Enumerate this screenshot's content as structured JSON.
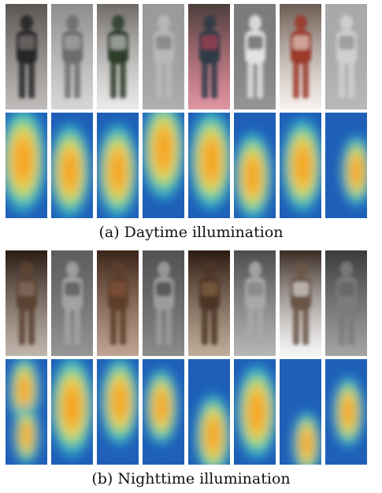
{
  "figure": {
    "caption_day": "(a) Daytime illumination",
    "caption_night": "(b) Nighttime illumination"
  },
  "day_photos": [
    {
      "bg": "#5b5552",
      "fg": "#262626",
      "accent": "#8a8582",
      "mode": "color"
    },
    {
      "bg": "#8c8c8c",
      "fg": "#6d6d6d",
      "accent": "#b5b5b5",
      "mode": "gray"
    },
    {
      "bg": "#6f6a66",
      "fg": "#2f3d2c",
      "accent": "#d9d9d9",
      "mode": "color"
    },
    {
      "bg": "#9a9a9a",
      "fg": "#b9b9b9",
      "accent": "#6e6e6e",
      "mode": "gray"
    },
    {
      "bg": "#4a3f3c",
      "fg": "#2d3a46",
      "accent": "#c53f57",
      "mode": "color"
    },
    {
      "bg": "#7c7c7c",
      "fg": "#e2e2e2",
      "accent": "#3f3f3f",
      "mode": "gray"
    },
    {
      "bg": "#6b5a50",
      "fg": "#9b3a2b",
      "accent": "#efe6df",
      "mode": "color"
    },
    {
      "bg": "#a9a9a9",
      "fg": "#d0d0d0",
      "accent": "#7f7f7f",
      "mode": "gray"
    }
  ],
  "night_photos": [
    {
      "bg": "#2a1a12",
      "fg": "#5b4332",
      "accent": "#8e7a6a",
      "mode": "color"
    },
    {
      "bg": "#5d5d5d",
      "fg": "#a3a3a3",
      "accent": "#3f3f3f",
      "mode": "gray"
    },
    {
      "bg": "#3a2418",
      "fg": "#5d3e2c",
      "accent": "#8b5a3c",
      "mode": "color"
    },
    {
      "bg": "#525252",
      "fg": "#9c9c9c",
      "accent": "#2e2e2e",
      "mode": "gray"
    },
    {
      "bg": "#2b1a11",
      "fg": "#4e3525",
      "accent": "#8a6a4a",
      "mode": "color"
    },
    {
      "bg": "#4c4c4c",
      "fg": "#a8a8a8",
      "accent": "#7a7a7a",
      "mode": "gray"
    },
    {
      "bg": "#3a2b22",
      "fg": "#6a5446",
      "accent": "#efefef",
      "mode": "color"
    },
    {
      "bg": "#3b3b3b",
      "fg": "#7b7b7b",
      "accent": "#5a5a5a",
      "mode": "gray"
    }
  ],
  "day_heatmaps": [
    {
      "hot": [
        [
          0.42,
          0.45,
          0.9
        ]
      ]
    },
    {
      "hot": [
        [
          0.45,
          0.55,
          0.8
        ]
      ]
    },
    {
      "hot": [
        [
          0.5,
          0.55,
          0.8
        ]
      ]
    },
    {
      "hot": [
        [
          0.5,
          0.35,
          0.85
        ]
      ]
    },
    {
      "hot": [
        [
          0.55,
          0.45,
          0.85
        ]
      ]
    },
    {
      "hot": [
        [
          0.45,
          0.6,
          0.75
        ]
      ]
    },
    {
      "hot": [
        [
          0.55,
          0.5,
          0.8
        ]
      ]
    },
    {
      "hot": [
        [
          0.75,
          0.55,
          0.6
        ]
      ]
    }
  ],
  "night_heatmaps": [
    {
      "hot": [
        [
          0.45,
          0.3,
          0.6
        ],
        [
          0.5,
          0.72,
          0.5
        ]
      ]
    },
    {
      "hot": [
        [
          0.5,
          0.45,
          0.85
        ]
      ]
    },
    {
      "hot": [
        [
          0.55,
          0.4,
          0.75
        ]
      ]
    },
    {
      "hot": [
        [
          0.45,
          0.45,
          0.65
        ]
      ]
    },
    {
      "hot": [
        [
          0.6,
          0.72,
          0.7
        ]
      ]
    },
    {
      "hot": [
        [
          0.55,
          0.5,
          0.8
        ]
      ]
    },
    {
      "hot": [
        [
          0.65,
          0.8,
          0.55
        ]
      ]
    },
    {
      "hot": [
        [
          0.55,
          0.5,
          0.6
        ]
      ]
    }
  ]
}
